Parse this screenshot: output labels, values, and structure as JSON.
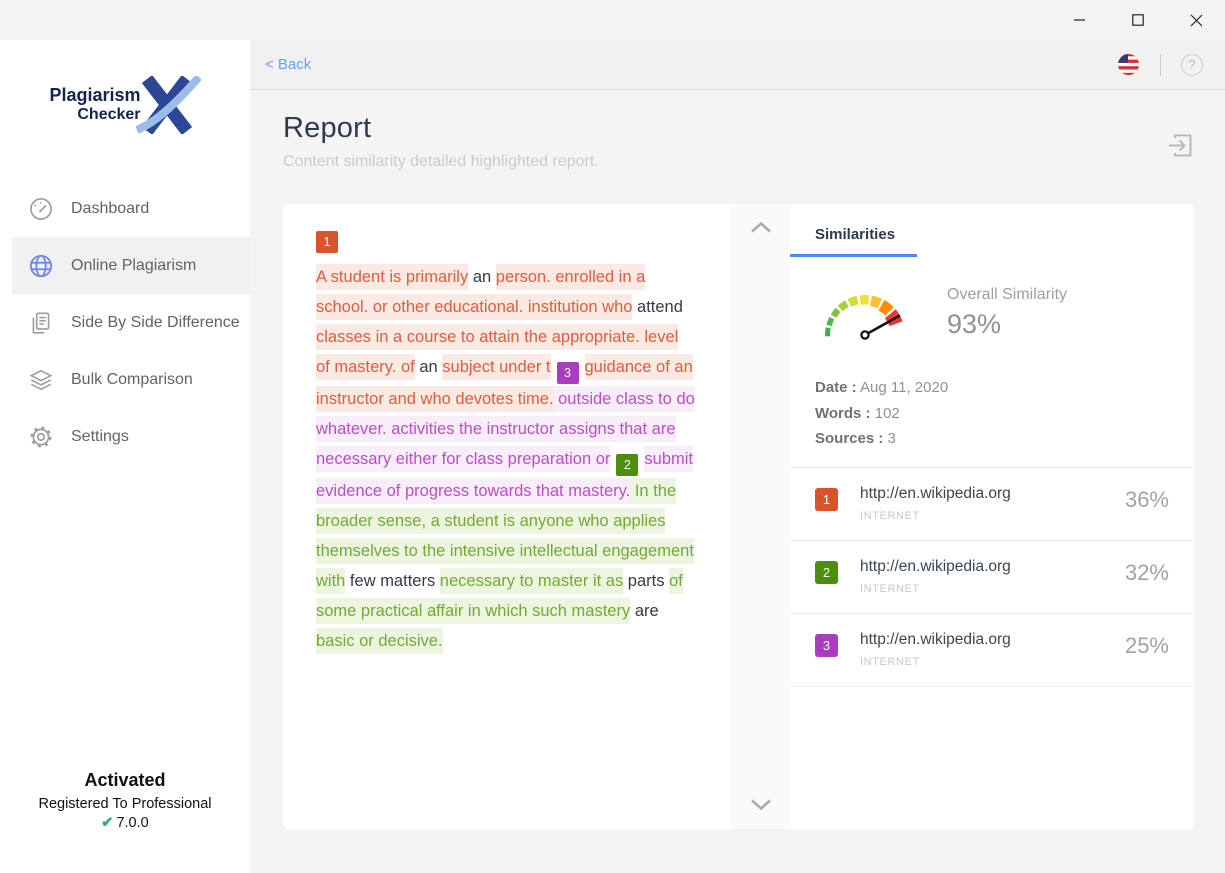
{
  "titlebar": {
    "minimize_icon": "minimize-dash",
    "maximize_icon": "maximize-square",
    "close_icon": "close-x"
  },
  "sidebar": {
    "logo": {
      "line1": "Plagiarism",
      "line2": "Checker",
      "mark": "X"
    },
    "items": [
      {
        "label": "Dashboard",
        "icon": "gauge-icon",
        "active": false
      },
      {
        "label": "Online Plagiarism",
        "icon": "globe-icon",
        "active": true
      },
      {
        "label": "Side By Side Difference",
        "icon": "documents-icon",
        "active": false
      },
      {
        "label": "Bulk Comparison",
        "icon": "layers-icon",
        "active": false
      },
      {
        "label": "Settings",
        "icon": "gear-icon",
        "active": false
      }
    ],
    "activation": {
      "status": "Activated",
      "registered": "Registered To Professional",
      "version": "7.0.0",
      "check_icon": "✔"
    }
  },
  "topbar": {
    "back_label": "< Back",
    "flag_icon": "us-flag-icon",
    "help_label": "?"
  },
  "header": {
    "title": "Report",
    "subtitle": "Content similarity detailed highlighted report.",
    "export_icon": "export-icon"
  },
  "document": {
    "segments": [
      {
        "t": "badge",
        "n": "1",
        "block": true
      },
      {
        "t": "r",
        "x": "A student is primarily"
      },
      {
        "t": "n",
        "x": " an "
      },
      {
        "t": "r",
        "x": "person. enrolled in a school. or other educational. institution who"
      },
      {
        "t": "n",
        "x": " attend "
      },
      {
        "t": "r",
        "x": "classes in a course to attain the appropriate. level of mastery. of"
      },
      {
        "t": "n",
        "x": " an "
      },
      {
        "t": "r",
        "x": "subject under t"
      },
      {
        "t": "badge",
        "n": "3"
      },
      {
        "t": "r",
        "x": "guidance of an instructor and who devotes time."
      },
      {
        "t": "p",
        "x": " outside class to do whatever. activities the instructor assigns that are necessary either for class preparation or"
      },
      {
        "t": "badge",
        "n": "2"
      },
      {
        "t": "p",
        "x": "submit evidence of progress towards that mastery."
      },
      {
        "t": "g",
        "x": " In the broader sense, a student is anyone who applies themselves to the intensive intellectual engagement with"
      },
      {
        "t": "n",
        "x": " few matters "
      },
      {
        "t": "g",
        "x": "necessary to master it as"
      },
      {
        "t": "n",
        "x": " parts "
      },
      {
        "t": "g",
        "x": "of some practical affair in which such mastery"
      },
      {
        "t": "n",
        "x": " are "
      },
      {
        "t": "g",
        "x": "basic or decisive."
      }
    ]
  },
  "similarities": {
    "tab": "Similarities",
    "overall_label": "Overall Similarity",
    "overall_value": "93%",
    "gauge_colors": [
      "#3daf4e",
      "#51b749",
      "#7ec141",
      "#a8cf3c",
      "#cede35",
      "#f2e134",
      "#fbc02d",
      "#fb8c00",
      "#e53935"
    ],
    "meta": [
      {
        "label": "Date :",
        "value": "Aug 11, 2020"
      },
      {
        "label": "Words :",
        "value": "102"
      },
      {
        "label": "Sources :",
        "value": "3"
      }
    ],
    "sources": [
      {
        "num": "1",
        "url": "http://en.wikipedia.org",
        "type": "INTERNET",
        "percent": "36%"
      },
      {
        "num": "2",
        "url": "http://en.wikipedia.org",
        "type": "INTERNET",
        "percent": "32%"
      },
      {
        "num": "3",
        "url": "http://en.wikipedia.org",
        "type": "INTERNET",
        "percent": "25%"
      }
    ]
  },
  "colors": {
    "accent_blue": "#4c89f8",
    "back_link": "#6aa0f7",
    "badge_colors": {
      "1": "#d9532e",
      "2": "#4e8d0e",
      "3": "#aa3cbf"
    },
    "highlight_red_text": "#e25c3d",
    "highlight_red_bg": "#fbeae3",
    "highlight_purple_text": "#bb4ec6",
    "highlight_purple_bg": "#f8eefa",
    "highlight_green_text": "#74a933",
    "highlight_green_bg": "#edf5e1",
    "check_green": "#21b573"
  }
}
